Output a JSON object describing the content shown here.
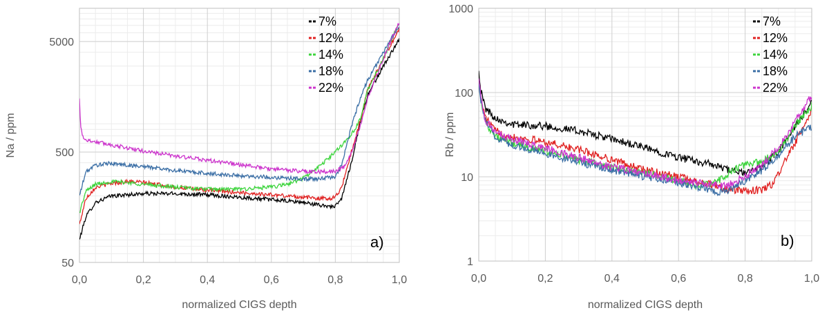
{
  "chart_data": [
    {
      "type": "line",
      "panel_label": "a)",
      "xlabel": "normalized CIGS depth",
      "ylabel": "Na / ppm",
      "yscale": "log",
      "xlim": [
        0,
        1
      ],
      "ylim": [
        50,
        10000
      ],
      "x_ticks": [
        0,
        0.2,
        0.4,
        0.6,
        0.8,
        1.0
      ],
      "x_tick_labels": [
        "0,0",
        "0,2",
        "0,4",
        "0,6",
        "0,8",
        "1,0"
      ],
      "y_ticks": [
        50,
        500,
        5000
      ],
      "y_tick_labels": [
        "50",
        "500",
        "5000"
      ],
      "grid": true,
      "legend_position": "top-right",
      "series": [
        {
          "name": "7%",
          "color": "#000000",
          "x": [
            0,
            0.02,
            0.05,
            0.1,
            0.2,
            0.3,
            0.4,
            0.5,
            0.6,
            0.7,
            0.75,
            0.8,
            0.82,
            0.85,
            0.88,
            0.9,
            0.95,
            1.0
          ],
          "y": [
            80,
            130,
            175,
            200,
            210,
            210,
            205,
            195,
            185,
            175,
            165,
            160,
            190,
            400,
            1000,
            1600,
            3000,
            5200
          ]
        },
        {
          "name": "12%",
          "color": "#e02020",
          "x": [
            0,
            0.02,
            0.05,
            0.1,
            0.15,
            0.2,
            0.3,
            0.4,
            0.5,
            0.6,
            0.7,
            0.75,
            0.78,
            0.8,
            0.82,
            0.85,
            0.88,
            0.9,
            0.95,
            1.0
          ],
          "y": [
            110,
            190,
            240,
            260,
            270,
            265,
            240,
            225,
            215,
            205,
            195,
            190,
            190,
            195,
            240,
            500,
            1000,
            1800,
            3500,
            6500
          ]
        },
        {
          "name": "14%",
          "color": "#3cd43c",
          "x": [
            0,
            0.02,
            0.05,
            0.1,
            0.15,
            0.2,
            0.3,
            0.4,
            0.5,
            0.6,
            0.65,
            0.7,
            0.75,
            0.8,
            0.85,
            0.88,
            0.9,
            0.95,
            1.0
          ],
          "y": [
            140,
            220,
            255,
            270,
            265,
            255,
            240,
            230,
            230,
            240,
            255,
            290,
            370,
            500,
            720,
            1000,
            1800,
            3500,
            7500
          ]
        },
        {
          "name": "18%",
          "color": "#3a6ea5",
          "x": [
            0,
            0.02,
            0.05,
            0.1,
            0.15,
            0.2,
            0.3,
            0.4,
            0.5,
            0.6,
            0.7,
            0.75,
            0.8,
            0.82,
            0.85,
            0.88,
            0.9,
            0.95,
            1.0
          ],
          "y": [
            200,
            330,
            380,
            395,
            380,
            370,
            340,
            320,
            305,
            295,
            285,
            285,
            300,
            380,
            850,
            1600,
            2200,
            4000,
            7000
          ]
        },
        {
          "name": "22%",
          "color": "#cc33cc",
          "x": [
            0,
            0.003,
            0.01,
            0.02,
            0.05,
            0.1,
            0.2,
            0.3,
            0.4,
            0.5,
            0.6,
            0.7,
            0.75,
            0.8,
            0.83,
            0.85,
            0.88,
            0.9,
            0.95,
            1.0
          ],
          "y": [
            1500,
            900,
            700,
            640,
            620,
            580,
            510,
            460,
            420,
            385,
            350,
            335,
            330,
            335,
            370,
            480,
            900,
            1500,
            3500,
            7500
          ]
        }
      ]
    },
    {
      "type": "line",
      "panel_label": "b)",
      "xlabel": "normalized CIGS depth",
      "ylabel": "Rb / ppm",
      "yscale": "log",
      "xlim": [
        0,
        1
      ],
      "ylim": [
        1,
        1000
      ],
      "x_ticks": [
        0,
        0.2,
        0.4,
        0.6,
        0.8,
        1.0
      ],
      "x_tick_labels": [
        "0,0",
        "0,2",
        "0,4",
        "0,6",
        "0,8",
        "1,0"
      ],
      "y_ticks": [
        1,
        10,
        100,
        1000
      ],
      "y_tick_labels": [
        "1",
        "10",
        "100",
        "1000"
      ],
      "grid": true,
      "legend_position": "top-right",
      "series": [
        {
          "name": "7%",
          "color": "#000000",
          "x": [
            0,
            0.005,
            0.02,
            0.05,
            0.1,
            0.2,
            0.3,
            0.4,
            0.5,
            0.6,
            0.7,
            0.75,
            0.8,
            0.85,
            0.9,
            0.95,
            1.0
          ],
          "y": [
            200,
            110,
            65,
            50,
            42,
            40,
            35,
            28,
            22,
            17,
            14,
            12,
            11,
            13,
            20,
            40,
            75
          ]
        },
        {
          "name": "12%",
          "color": "#e02020",
          "x": [
            0,
            0.005,
            0.02,
            0.05,
            0.1,
            0.2,
            0.3,
            0.4,
            0.5,
            0.6,
            0.7,
            0.75,
            0.8,
            0.85,
            0.88,
            0.9,
            0.95,
            1.0
          ],
          "y": [
            150,
            90,
            50,
            35,
            30,
            26,
            21,
            16,
            12,
            10,
            8,
            7,
            6.8,
            7,
            8,
            11,
            25,
            60
          ]
        },
        {
          "name": "14%",
          "color": "#3cd43c",
          "x": [
            0,
            0.005,
            0.02,
            0.05,
            0.1,
            0.2,
            0.3,
            0.4,
            0.5,
            0.6,
            0.65,
            0.7,
            0.75,
            0.8,
            0.85,
            0.9,
            0.95,
            1.0
          ],
          "y": [
            150,
            90,
            45,
            30,
            25,
            20,
            16,
            13,
            11,
            9,
            8,
            8,
            11,
            14,
            15,
            20,
            40,
            70
          ]
        },
        {
          "name": "18%",
          "color": "#3a6ea5",
          "x": [
            0,
            0.005,
            0.02,
            0.05,
            0.1,
            0.2,
            0.3,
            0.4,
            0.5,
            0.6,
            0.7,
            0.72,
            0.75,
            0.8,
            0.85,
            0.9,
            0.95,
            1.0
          ],
          "y": [
            140,
            85,
            45,
            30,
            24,
            19,
            15,
            12,
            10,
            8.5,
            7,
            6.5,
            7,
            9,
            12,
            18,
            30,
            40
          ]
        },
        {
          "name": "22%",
          "color": "#cc33cc",
          "x": [
            0,
            0.005,
            0.02,
            0.05,
            0.1,
            0.2,
            0.3,
            0.4,
            0.5,
            0.6,
            0.7,
            0.75,
            0.8,
            0.85,
            0.9,
            0.95,
            1.0
          ],
          "y": [
            160,
            95,
            48,
            33,
            28,
            22,
            17,
            13,
            11,
            9,
            8,
            8,
            10,
            14,
            22,
            45,
            95
          ]
        }
      ]
    }
  ]
}
